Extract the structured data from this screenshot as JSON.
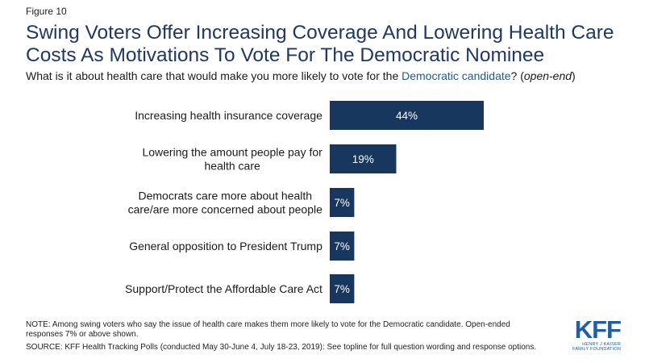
{
  "figure_label": "Figure 10",
  "title": "Swing Voters Offer Increasing Coverage And Lowering Health Care Costs As Motivations To Vote For The Democratic Nominee",
  "question": {
    "prefix": "What is it about health care that would make you more likely to vote for the ",
    "accent": "Democratic candidate",
    "middle": "? (",
    "italic": "open-end",
    "suffix": ")"
  },
  "colors": {
    "bar": "#17375e",
    "title": "#1f3864",
    "accent": "#1f5a8e",
    "logo": "#1f5fa8"
  },
  "chart_data": {
    "type": "bar",
    "orientation": "horizontal",
    "categories": [
      [
        "Increasing health insurance coverage"
      ],
      [
        "Lowering the amount people pay for",
        "health care"
      ],
      [
        "Democrats care more about health",
        "care/are more concerned about people"
      ],
      [
        "General opposition to President Trump"
      ],
      [
        "Support/Protect the Affordable Care Act"
      ]
    ],
    "values": [
      44,
      19,
      7,
      7,
      7
    ],
    "value_labels": [
      "44%",
      "19%",
      "7%",
      "7%",
      "7%"
    ],
    "xlim": [
      0,
      100
    ]
  },
  "note": "NOTE: Among swing voters who say the issue of health care makes them more likely to vote for the Democratic candidate. Open-ended responses 7% or above shown.",
  "source": "SOURCE: KFF Health Tracking Polls (conducted May 30-June 4, July 18-23, 2019): See topline for full question wording and response options.",
  "logo": {
    "main": "KFF",
    "sub_line1": "HENRY J KAISER",
    "sub_line2": "FAMILY FOUNDATION"
  }
}
